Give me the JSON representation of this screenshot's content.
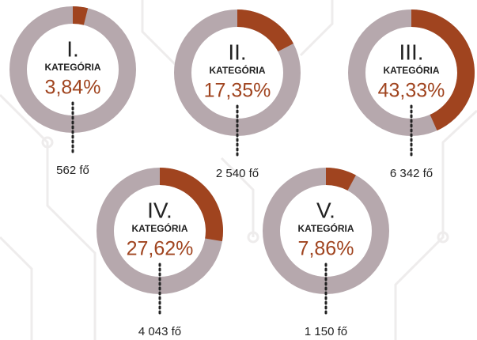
{
  "chart_data": [
    {
      "type": "donut",
      "title": "I.",
      "subtitle": "KATEGÓRIA",
      "values": [
        3.84
      ],
      "value_labels": [
        "3,84%"
      ],
      "annotation": "562 fő",
      "color": "#a0441f",
      "track_color": "#b6a8ad"
    },
    {
      "type": "donut",
      "title": "II.",
      "subtitle": "KATEGÓRIA",
      "values": [
        17.35
      ],
      "value_labels": [
        "17,35%"
      ],
      "annotation": "2 540 fő",
      "color": "#a0441f",
      "track_color": "#b6a8ad"
    },
    {
      "type": "donut",
      "title": "III.",
      "subtitle": "KATEGÓRIA",
      "values": [
        43.33
      ],
      "value_labels": [
        "43,33%"
      ],
      "annotation": "6 342 fő",
      "color": "#a0441f",
      "track_color": "#b6a8ad"
    },
    {
      "type": "donut",
      "title": "IV.",
      "subtitle": "KATEGÓRIA",
      "values": [
        27.62
      ],
      "value_labels": [
        "27,62%"
      ],
      "annotation": "4 043 fő",
      "color": "#a0441f",
      "track_color": "#b6a8ad"
    },
    {
      "type": "donut",
      "title": "V.",
      "subtitle": "KATEGÓRIA",
      "values": [
        7.86
      ],
      "value_labels": [
        "7,86%"
      ],
      "annotation": "1 150 fő",
      "color": "#a0441f",
      "track_color": "#b6a8ad"
    }
  ]
}
